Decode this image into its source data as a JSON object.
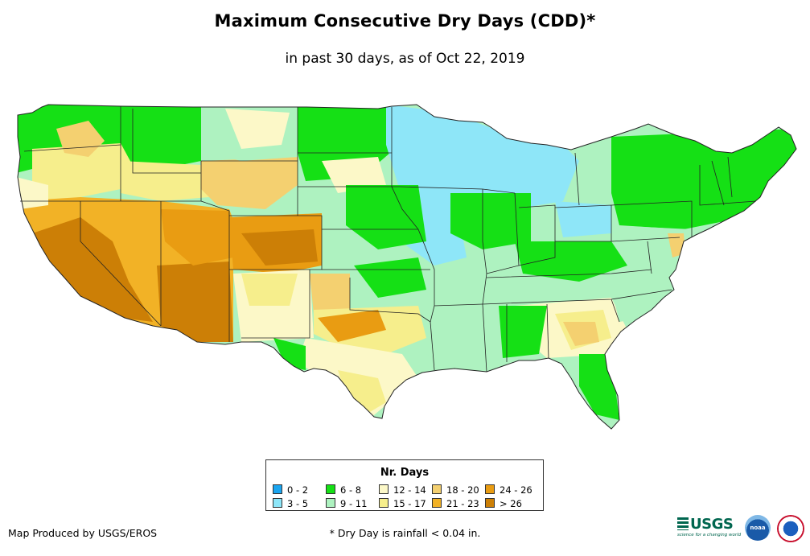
{
  "title": "Maximum Consecutive Dry Days (CDD)*",
  "subtitle": "in past 30 days, as of Oct 22, 2019",
  "legend": {
    "title": "Nr. Days",
    "items": [
      {
        "label": "0 - 2",
        "color": "#1aa5f0"
      },
      {
        "label": "3 - 5",
        "color": "#8ee6f8"
      },
      {
        "label": "6 - 8",
        "color": "#15e015"
      },
      {
        "label": "9 - 11",
        "color": "#aef2c0"
      },
      {
        "label": "12 - 14",
        "color": "#fcf8c8"
      },
      {
        "label": "15 - 17",
        "color": "#f6ee8c"
      },
      {
        "label": "18 - 20",
        "color": "#f4d070"
      },
      {
        "label": "21 - 23",
        "color": "#f2b226"
      },
      {
        "label": "24 - 26",
        "color": "#e99c12"
      },
      {
        "label": "> 26",
        "color": "#cc7f06"
      }
    ]
  },
  "footer": {
    "credit": "Map Produced by USGS/EROS",
    "footnote": "* Dry Day is rainfall < 0.04 in.",
    "usgs_logo": "USGS",
    "usgs_tagline": "science for a changing world",
    "noaa_logo": "noaa"
  }
}
